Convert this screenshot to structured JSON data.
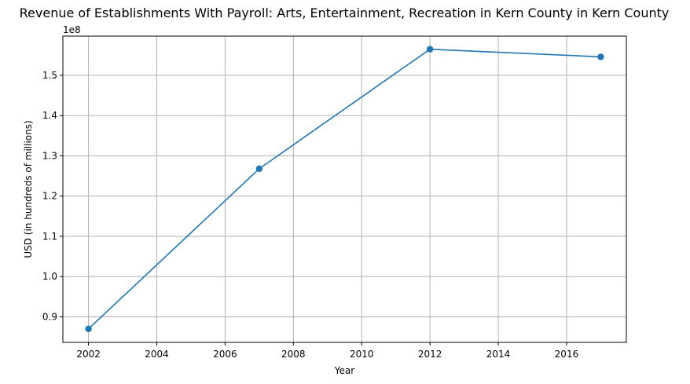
{
  "chart_data": {
    "type": "line",
    "title": "Revenue of Establishments With Payroll: Arts, Entertainment, Recreation in Kern County in Kern County",
    "xlabel": "Year",
    "ylabel": "USD (in hundreds of millions)",
    "offset_label": "1e8",
    "xlim": [
      2001.25,
      2017.75
    ],
    "ylim": [
      0.8365,
      1.5975
    ],
    "x_ticks": [
      2002,
      2004,
      2006,
      2008,
      2010,
      2012,
      2014,
      2016
    ],
    "x_tick_labels": [
      "2002",
      "2004",
      "2006",
      "2008",
      "2010",
      "2012",
      "2014",
      "2016"
    ],
    "y_ticks": [
      0.9,
      1.0,
      1.1,
      1.2,
      1.3,
      1.4,
      1.5
    ],
    "y_tick_labels": [
      "0.9",
      "1.0",
      "1.1",
      "1.2",
      "1.3",
      "1.4",
      "1.5"
    ],
    "grid": true,
    "series": [
      {
        "color": "#1f77b4",
        "marker": "circle",
        "x": [
          2002,
          2007,
          2012,
          2017
        ],
        "y": [
          0.87,
          1.268,
          1.565,
          1.546
        ]
      }
    ]
  }
}
